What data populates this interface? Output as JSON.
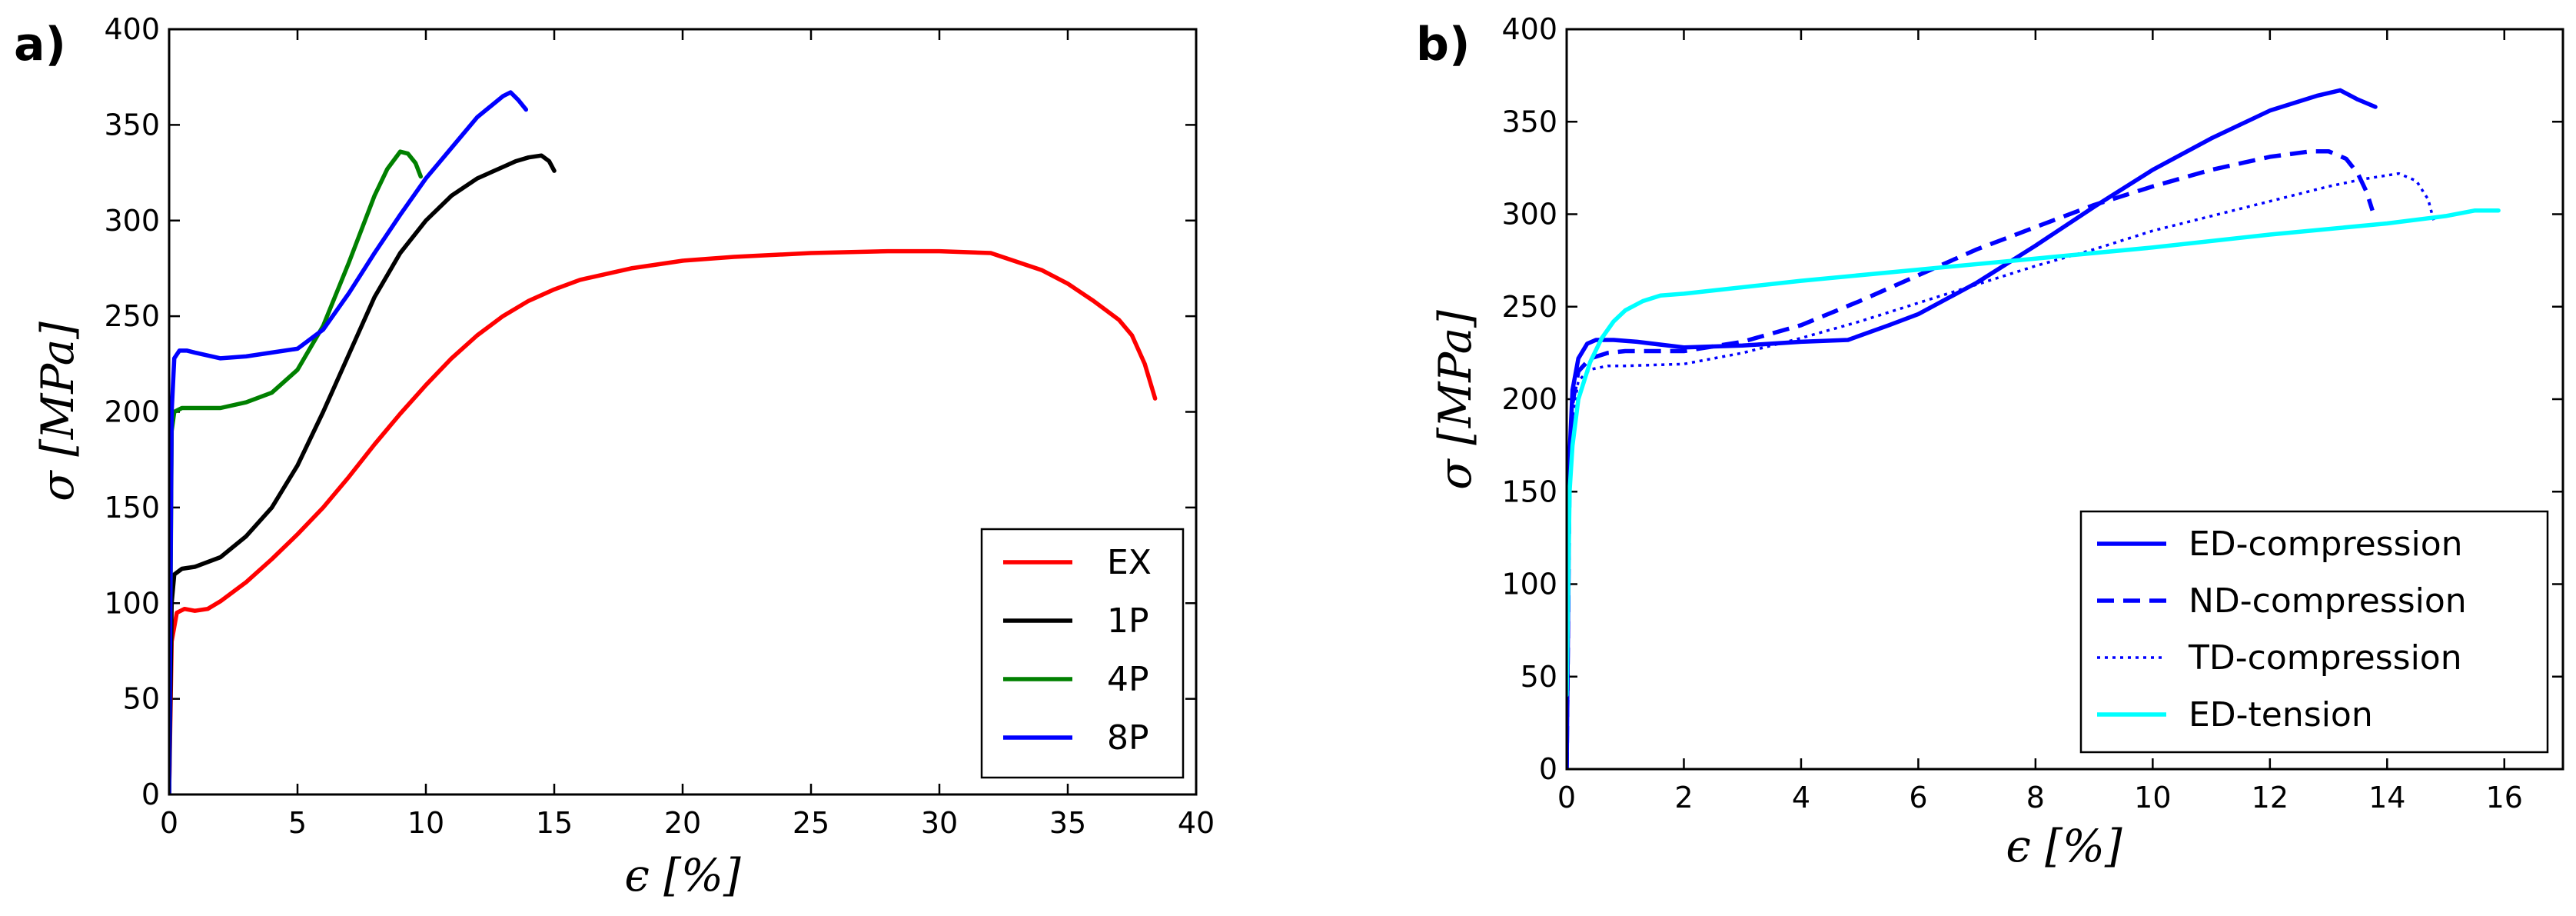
{
  "chart_data": [
    {
      "panel_label": "a)",
      "type": "line",
      "xlabel": "ϵ [%]",
      "ylabel": "σ [MPa]",
      "xlim": [
        0,
        40
      ],
      "ylim": [
        0,
        400
      ],
      "xticks": [
        "0",
        "5",
        "10",
        "15",
        "20",
        "25",
        "30",
        "35",
        "40"
      ],
      "yticks": [
        "0",
        "50",
        "100",
        "150",
        "200",
        "250",
        "300",
        "350",
        "400"
      ],
      "legend": "bottom-right",
      "series": [
        {
          "name": "EX",
          "color": "#ff0000",
          "style": "solid",
          "x": [
            0,
            0.1,
            0.3,
            0.6,
            1.0,
            1.5,
            2,
            3,
            4,
            5,
            6,
            7,
            8,
            9,
            10,
            11,
            12,
            13,
            14,
            15,
            16,
            18,
            20,
            22,
            25,
            28,
            30,
            32,
            34,
            35,
            36,
            37,
            37.5,
            38,
            38.4
          ],
          "y": [
            0,
            80,
            95,
            97,
            96,
            97,
            101,
            111,
            123,
            136,
            150,
            166,
            183,
            199,
            214,
            228,
            240,
            250,
            258,
            264,
            269,
            275,
            279,
            281,
            283,
            284,
            284,
            283,
            274,
            267,
            258,
            248,
            240,
            225,
            207
          ]
        },
        {
          "name": "1P",
          "color": "#000000",
          "style": "solid",
          "x": [
            0,
            0.1,
            0.2,
            0.5,
            1,
            2,
            3,
            4,
            5,
            6,
            7,
            8,
            9,
            10,
            11,
            12,
            13,
            13.5,
            14,
            14.5,
            14.8,
            15.0
          ],
          "y": [
            0,
            100,
            115,
            118,
            119,
            124,
            135,
            150,
            172,
            200,
            230,
            260,
            283,
            300,
            313,
            322,
            328,
            331,
            333,
            334,
            331,
            326
          ]
        },
        {
          "name": "4P",
          "color": "#008000",
          "style": "solid",
          "x": [
            0,
            0.1,
            0.2,
            0.5,
            1,
            2,
            3,
            4,
            5,
            6,
            7,
            8,
            8.5,
            9,
            9.3,
            9.6,
            9.8
          ],
          "y": [
            0,
            190,
            200,
            202,
            202,
            202,
            205,
            210,
            222,
            245,
            278,
            313,
            327,
            336,
            335,
            330,
            323
          ]
        },
        {
          "name": "8P",
          "color": "#0000ff",
          "style": "solid",
          "x": [
            0,
            0.1,
            0.2,
            0.4,
            0.7,
            1,
            2,
            3,
            4,
            5,
            6,
            7,
            8,
            9,
            10,
            11,
            12,
            13,
            13.3,
            13.6,
            13.9
          ],
          "y": [
            0,
            200,
            228,
            232,
            232,
            231,
            228,
            229,
            231,
            233,
            243,
            262,
            283,
            303,
            322,
            338,
            354,
            365,
            367,
            363,
            358
          ]
        }
      ]
    },
    {
      "panel_label": "b)",
      "type": "line",
      "xlabel": "ϵ [%]",
      "ylabel": "σ [MPa]",
      "xlim": [
        0,
        17
      ],
      "ylim": [
        0,
        400
      ],
      "xticks": [
        "0",
        "2",
        "4",
        "6",
        "8",
        "10",
        "12",
        "14",
        "16"
      ],
      "yticks": [
        "0",
        "50",
        "100",
        "150",
        "200",
        "250",
        "300",
        "350",
        "400"
      ],
      "legend": "bottom-right",
      "series": [
        {
          "name": "ED-compression",
          "color": "#0000ff",
          "style": "solid",
          "x": [
            0,
            0.05,
            0.1,
            0.2,
            0.35,
            0.5,
            0.8,
            1.2,
            2,
            3,
            4,
            4.8,
            5.5,
            6,
            7,
            8,
            9,
            10,
            11,
            12,
            12.8,
            13.2,
            13.5,
            13.8
          ],
          "y": [
            0,
            170,
            205,
            222,
            230,
            232,
            232,
            231,
            228,
            229,
            231,
            232,
            240,
            246,
            263,
            283,
            304,
            324,
            341,
            356,
            364,
            367,
            362,
            358
          ]
        },
        {
          "name": "ND-compression",
          "color": "#0000ff",
          "style": "dashed",
          "x": [
            0,
            0.05,
            0.1,
            0.2,
            0.4,
            0.7,
            1,
            2,
            3,
            4,
            5,
            6,
            7,
            8,
            9,
            10,
            11,
            12,
            12.7,
            13.0,
            13.3,
            13.5,
            13.65,
            13.75
          ],
          "y": [
            0,
            160,
            198,
            215,
            222,
            225,
            226,
            226,
            231,
            240,
            253,
            267,
            281,
            293,
            305,
            315,
            324,
            331,
            334,
            334,
            330,
            322,
            312,
            302
          ]
        },
        {
          "name": "TD-compression",
          "color": "#0000ff",
          "style": "dotted",
          "x": [
            0,
            0.05,
            0.1,
            0.2,
            0.4,
            0.7,
            1,
            2,
            3,
            4,
            5,
            6,
            7,
            8,
            9,
            10,
            11,
            12,
            13,
            13.6,
            14.2,
            14.5,
            14.7,
            14.8
          ],
          "y": [
            0,
            150,
            190,
            210,
            216,
            218,
            218,
            219,
            225,
            233,
            242,
            252,
            262,
            272,
            281,
            291,
            299,
            307,
            315,
            319,
            322,
            318,
            308,
            296
          ]
        },
        {
          "name": "ED-tension",
          "color": "#00ffff",
          "style": "solid",
          "x": [
            0,
            0.05,
            0.1,
            0.2,
            0.4,
            0.6,
            0.8,
            1,
            1.3,
            1.6,
            2,
            4,
            6,
            8,
            10,
            12,
            14,
            15,
            15.5,
            15.9
          ],
          "y": [
            40,
            150,
            175,
            200,
            220,
            233,
            242,
            248,
            253,
            256,
            257,
            264,
            270,
            276,
            282,
            289,
            295,
            299,
            302,
            302
          ]
        }
      ]
    }
  ]
}
